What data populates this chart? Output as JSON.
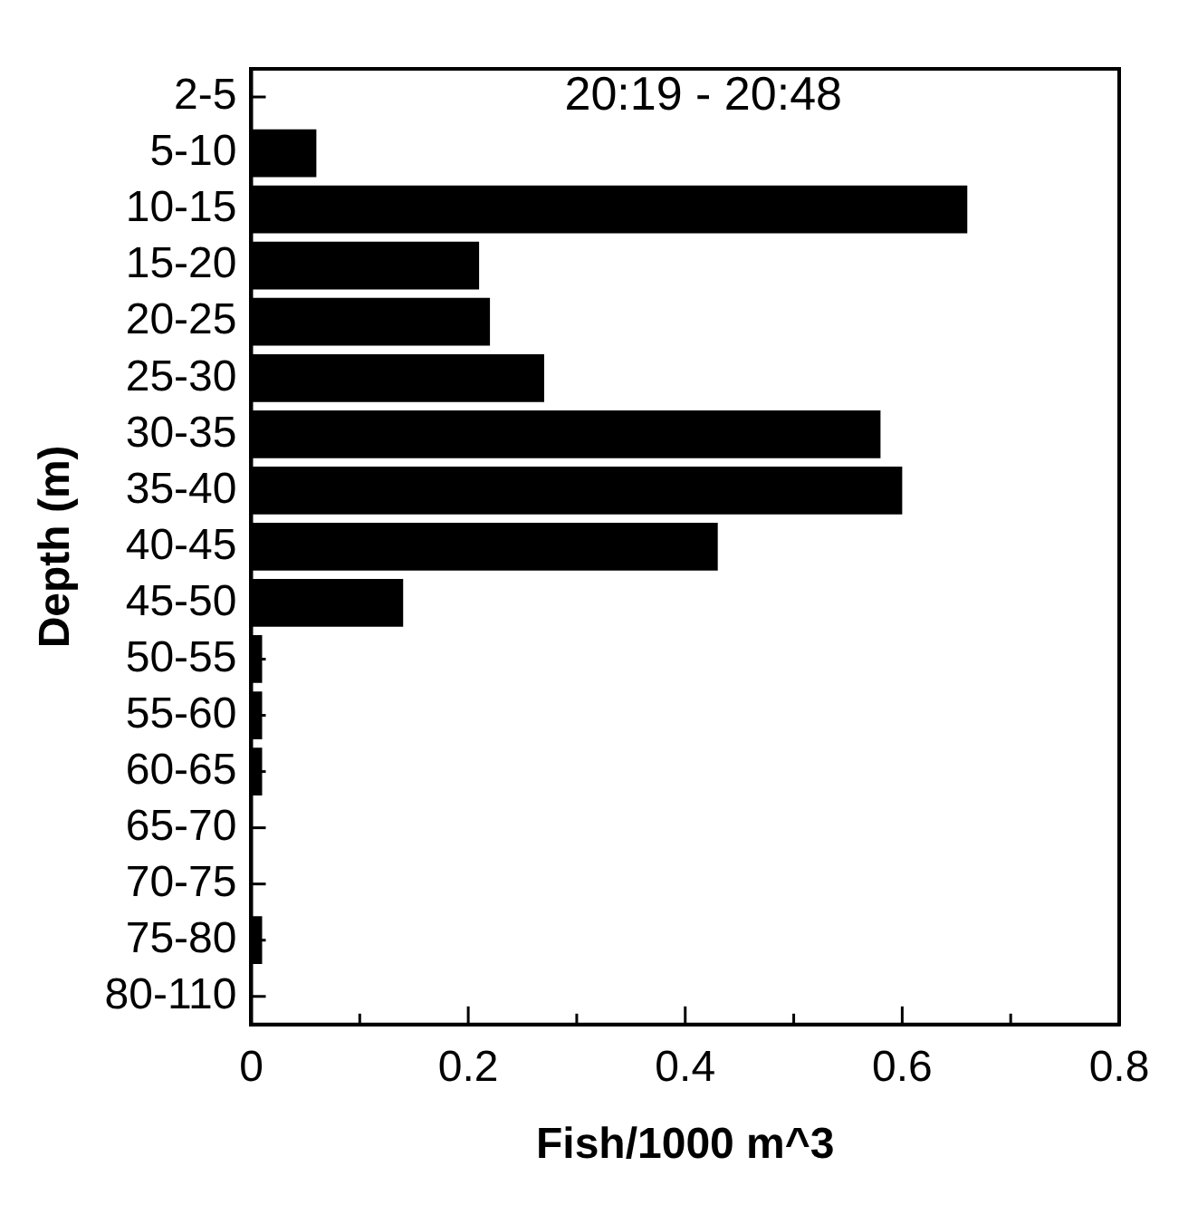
{
  "chart_data": {
    "type": "bar",
    "orientation": "horizontal",
    "title": "20:19 - 20:48",
    "xlabel": "Fish/1000 m^3",
    "ylabel": "Depth (m)",
    "categories": [
      "2-5",
      "5-10",
      "10-15",
      "15-20",
      "20-25",
      "25-30",
      "30-35",
      "35-40",
      "40-45",
      "45-50",
      "50-55",
      "55-60",
      "60-65",
      "65-70",
      "70-75",
      "75-80",
      "80-110"
    ],
    "values": [
      0,
      0.06,
      0.66,
      0.21,
      0.22,
      0.27,
      0.58,
      0.6,
      0.43,
      0.14,
      0.01,
      0.01,
      0.01,
      0,
      0,
      0.01,
      0
    ],
    "color": "#000000",
    "xlim": [
      0,
      0.8
    ],
    "xticks": [
      0,
      {
        "value": 0.1,
        "label": null
      },
      0.2,
      {
        "value": 0.3,
        "label": null
      },
      0.4,
      {
        "value": 0.5,
        "label": null
      },
      0.6,
      {
        "value": 0.7,
        "label": null
      },
      0.8
    ],
    "grid": false,
    "legend": false
  }
}
